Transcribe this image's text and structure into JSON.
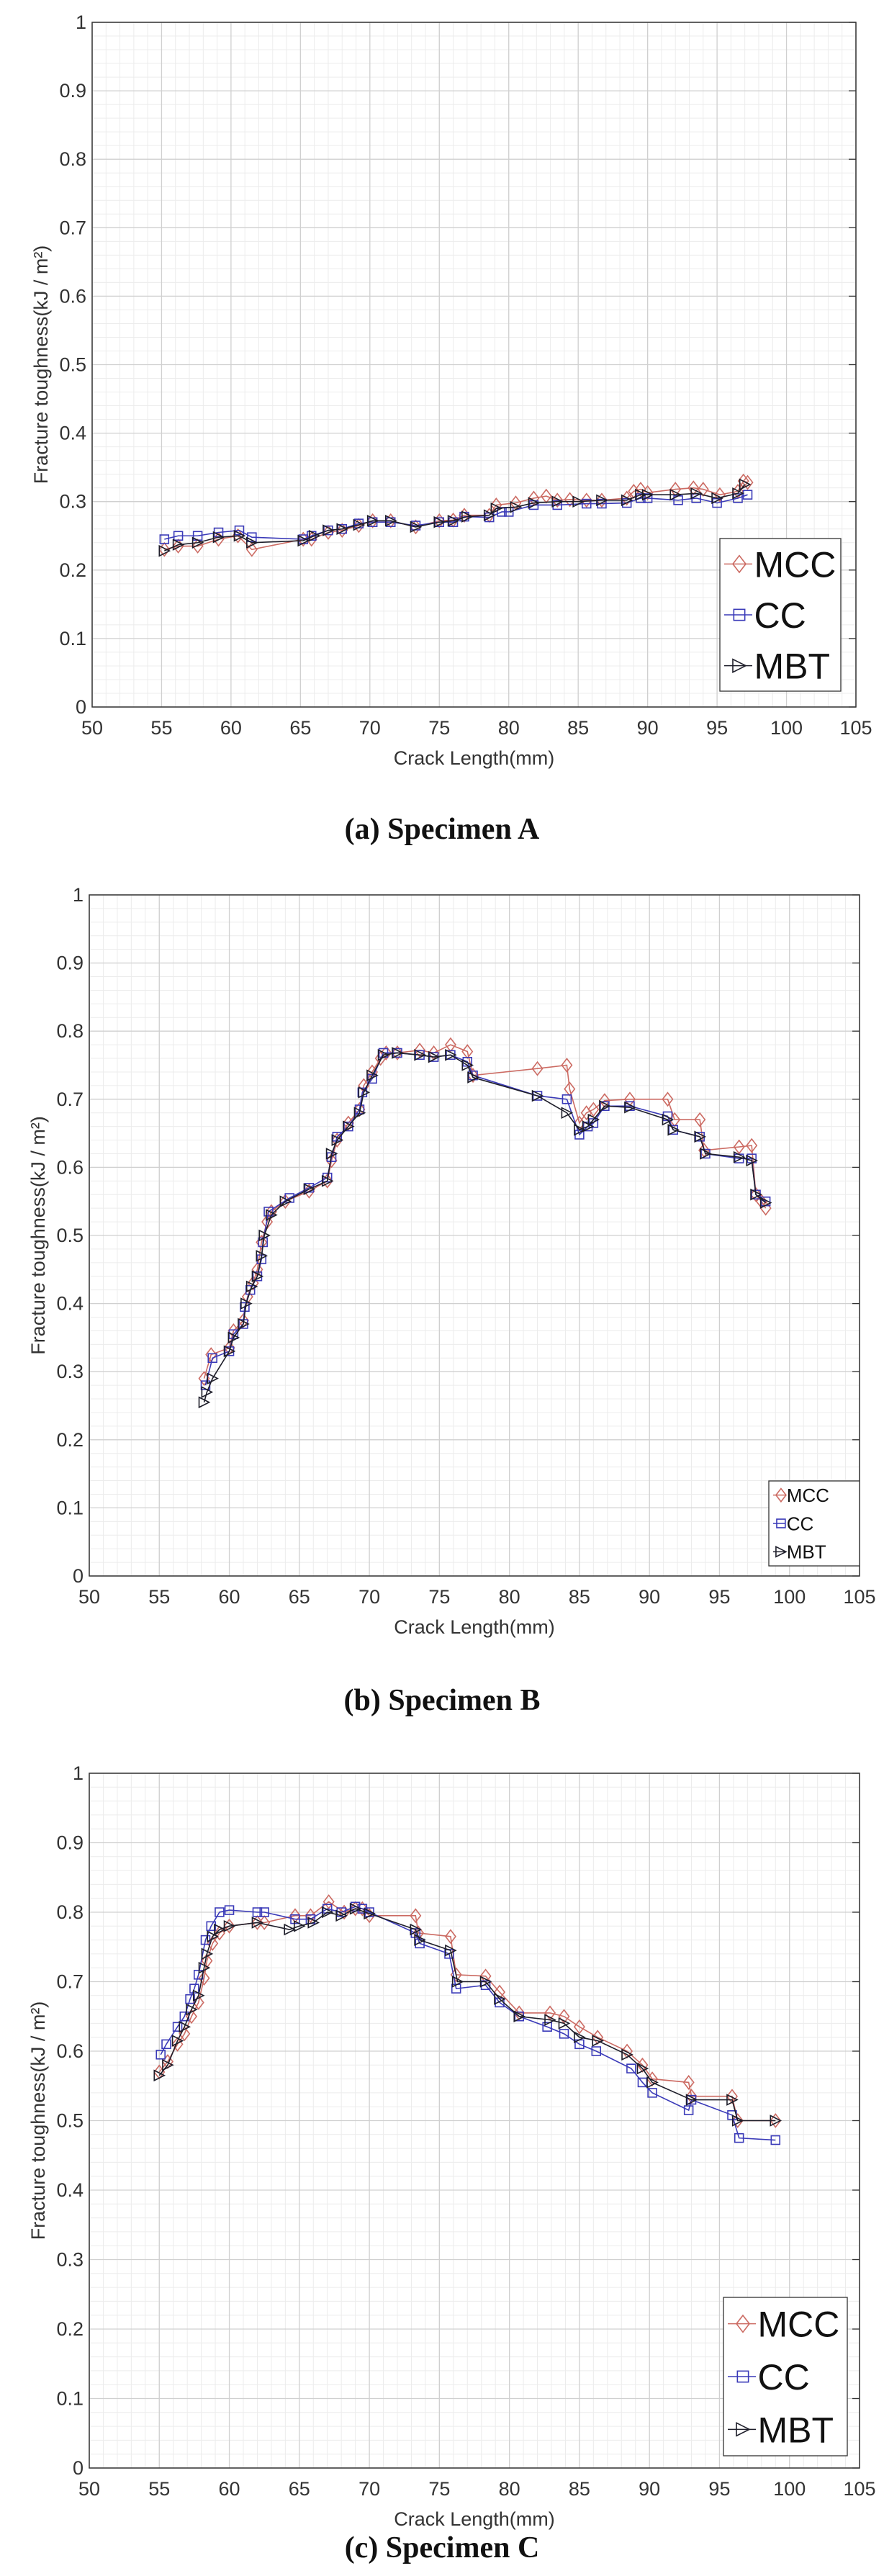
{
  "colors": {
    "MCC": "#cc6b63",
    "CC": "#3a3ab8",
    "MBT": "#1e1e2a"
  },
  "chart_data": [
    {
      "type": "line",
      "caption": "(a) Specimen A",
      "xlabel": "Crack Length(mm)",
      "ylabel": "Fracture toughness(kJ / m²)",
      "xlim": [
        50,
        105
      ],
      "ylim": [
        0,
        1
      ],
      "grid": true,
      "legend": "bottom-right",
      "legend_size": "large",
      "xticks": [
        "50",
        "55",
        "60",
        "65",
        "70",
        "75",
        "80",
        "85",
        "90",
        "95",
        "100",
        "105"
      ],
      "yticks": [
        "0",
        "0.1",
        "0.2",
        "0.3",
        "0.4",
        "0.5",
        "0.6",
        "0.7",
        "0.8",
        "0.9",
        "1"
      ],
      "series": [
        {
          "name": "MCC",
          "marker": "diamond",
          "x": [
            55.2,
            56.2,
            57.6,
            59.1,
            60.5,
            61.5,
            65.2,
            65.8,
            67,
            68,
            69.2,
            70.2,
            71.5,
            73.3,
            75,
            76,
            76.8,
            78.6,
            79.1,
            80.5,
            81.8,
            82.7,
            83.5,
            84.4,
            85.6,
            86.7,
            88.5,
            89,
            89.5,
            90,
            92,
            93.3,
            94,
            95.2,
            96.5,
            96.9,
            97.2
          ],
          "y": [
            0.23,
            0.235,
            0.235,
            0.245,
            0.25,
            0.23,
            0.245,
            0.245,
            0.255,
            0.258,
            0.265,
            0.272,
            0.272,
            0.263,
            0.272,
            0.273,
            0.28,
            0.28,
            0.295,
            0.298,
            0.305,
            0.308,
            0.302,
            0.303,
            0.302,
            0.302,
            0.305,
            0.315,
            0.318,
            0.313,
            0.318,
            0.32,
            0.318,
            0.31,
            0.315,
            0.33,
            0.328
          ]
        },
        {
          "name": "CC",
          "marker": "square",
          "x": [
            55.2,
            56.2,
            57.6,
            59.1,
            60.6,
            61.5,
            65.2,
            65.8,
            67,
            68,
            69.2,
            70.2,
            71.5,
            73.3,
            75,
            76,
            76.8,
            78.6,
            79.5,
            80,
            81.8,
            83.5,
            85.6,
            86.7,
            88.5,
            89.5,
            90,
            92.2,
            93.5,
            95,
            96.5,
            97.2
          ],
          "y": [
            0.245,
            0.25,
            0.25,
            0.255,
            0.258,
            0.248,
            0.245,
            0.25,
            0.258,
            0.26,
            0.268,
            0.27,
            0.27,
            0.265,
            0.27,
            0.27,
            0.278,
            0.277,
            0.285,
            0.285,
            0.295,
            0.295,
            0.297,
            0.297,
            0.298,
            0.305,
            0.305,
            0.302,
            0.305,
            0.298,
            0.305,
            0.31
          ]
        },
        {
          "name": "MBT",
          "marker": "triangle-right",
          "x": [
            55.2,
            56.2,
            57.6,
            59.1,
            60.6,
            61.5,
            65.2,
            66,
            67,
            68,
            69.2,
            70.2,
            71.5,
            73.3,
            75,
            76,
            77,
            78.6,
            79.1,
            80.5,
            81.8,
            83.5,
            85,
            86.7,
            88.5,
            89.5,
            90,
            92,
            93.5,
            95,
            96.5,
            97
          ],
          "y": [
            0.228,
            0.237,
            0.24,
            0.248,
            0.25,
            0.24,
            0.243,
            0.25,
            0.258,
            0.26,
            0.266,
            0.272,
            0.272,
            0.263,
            0.27,
            0.272,
            0.278,
            0.28,
            0.29,
            0.292,
            0.298,
            0.3,
            0.3,
            0.302,
            0.302,
            0.31,
            0.31,
            0.31,
            0.312,
            0.305,
            0.312,
            0.325
          ]
        }
      ]
    },
    {
      "type": "line",
      "caption": "(b) Specimen B",
      "xlabel": "Crack Length(mm)",
      "ylabel": "Fracture toughness(kJ / m²)",
      "xlim": [
        50,
        105
      ],
      "ylim": [
        0,
        1
      ],
      "grid": true,
      "legend": "bottom-right",
      "legend_size": "small",
      "xticks": [
        "50",
        "55",
        "60",
        "65",
        "70",
        "75",
        "80",
        "85",
        "90",
        "95",
        "100",
        "105"
      ],
      "yticks": [
        "0",
        "0.1",
        "0.2",
        "0.3",
        "0.4",
        "0.5",
        "0.6",
        "0.7",
        "0.8",
        "0.9",
        "1"
      ],
      "series": [
        {
          "name": "MCC",
          "marker": "diamond",
          "x": [
            58.2,
            58.7,
            60,
            60.3,
            61,
            61.3,
            61.7,
            62,
            62.3,
            62.7,
            63,
            64,
            65.7,
            67,
            67.3,
            67.7,
            68.5,
            69.3,
            69.6,
            70.2,
            70.8,
            71.2,
            72,
            73.6,
            74.6,
            75.8,
            77,
            77.4,
            82,
            84.1,
            84.3,
            85,
            85.5,
            86,
            86.8,
            88.6,
            91.3,
            91.8,
            93.6,
            93.9,
            96.4,
            97.3,
            97.6,
            98,
            98.3
          ],
          "y": [
            0.29,
            0.325,
            0.335,
            0.36,
            0.375,
            0.41,
            0.43,
            0.45,
            0.49,
            0.52,
            0.535,
            0.55,
            0.565,
            0.58,
            0.61,
            0.64,
            0.665,
            0.685,
            0.72,
            0.74,
            0.76,
            0.768,
            0.768,
            0.772,
            0.768,
            0.78,
            0.77,
            0.735,
            0.745,
            0.75,
            0.715,
            0.665,
            0.68,
            0.685,
            0.698,
            0.7,
            0.7,
            0.67,
            0.67,
            0.625,
            0.63,
            0.632,
            0.56,
            0.55,
            0.54
          ]
        },
        {
          "name": "CC",
          "marker": "square",
          "x": [
            58.3,
            58.8,
            60,
            60.3,
            61,
            61.1,
            61.5,
            62,
            62.3,
            62.4,
            62.8,
            64.3,
            65.7,
            67,
            67.3,
            67.7,
            68.5,
            69.3,
            69.5,
            70.2,
            71,
            72,
            73.6,
            74.6,
            75.8,
            77,
            77.4,
            82,
            84.1,
            85,
            85.6,
            86,
            86.8,
            88.6,
            91.3,
            91.7,
            93.6,
            94,
            96.4,
            97.3,
            97.6,
            98.3
          ],
          "y": [
            0.28,
            0.32,
            0.33,
            0.355,
            0.37,
            0.395,
            0.42,
            0.44,
            0.465,
            0.49,
            0.535,
            0.555,
            0.57,
            0.585,
            0.615,
            0.645,
            0.66,
            0.685,
            0.71,
            0.73,
            0.768,
            0.768,
            0.765,
            0.762,
            0.765,
            0.755,
            0.735,
            0.705,
            0.7,
            0.648,
            0.66,
            0.665,
            0.69,
            0.69,
            0.675,
            0.655,
            0.645,
            0.62,
            0.613,
            0.613,
            0.56,
            0.55
          ]
        },
        {
          "name": "MBT",
          "marker": "triangle-right",
          "x": [
            58.2,
            58.4,
            58.8,
            60,
            60.3,
            61,
            61.2,
            61.6,
            62,
            62.3,
            62.5,
            63,
            64,
            65.7,
            67,
            67.3,
            67.7,
            68.5,
            69.3,
            69.6,
            70.2,
            71,
            72,
            73.6,
            74.6,
            75.8,
            77,
            77.4,
            82,
            84.1,
            85,
            85.6,
            86,
            86.8,
            88.6,
            91.3,
            91.7,
            93.6,
            94,
            96.4,
            97.3,
            97.6,
            98.3
          ],
          "y": [
            0.255,
            0.27,
            0.29,
            0.33,
            0.35,
            0.37,
            0.4,
            0.425,
            0.44,
            0.47,
            0.5,
            0.53,
            0.55,
            0.568,
            0.58,
            0.62,
            0.64,
            0.66,
            0.68,
            0.71,
            0.735,
            0.765,
            0.768,
            0.765,
            0.762,
            0.765,
            0.75,
            0.732,
            0.705,
            0.68,
            0.655,
            0.66,
            0.67,
            0.69,
            0.688,
            0.67,
            0.655,
            0.645,
            0.62,
            0.615,
            0.61,
            0.56,
            0.548
          ]
        }
      ]
    },
    {
      "type": "line",
      "caption": "(c) Specimen C",
      "xlabel": "Crack Length(mm)",
      "ylabel": "Fracture toughness(kJ / m²)",
      "xlim": [
        50,
        105
      ],
      "ylim": [
        0,
        1
      ],
      "grid": true,
      "legend": "bottom-right",
      "legend_size": "large",
      "xticks": [
        "50",
        "55",
        "60",
        "65",
        "70",
        "75",
        "80",
        "85",
        "90",
        "95",
        "100",
        "105"
      ],
      "yticks": [
        "0",
        "0.1",
        "0.2",
        "0.3",
        "0.4",
        "0.5",
        "0.6",
        "0.7",
        "0.8",
        "0.9",
        "1"
      ],
      "series": [
        {
          "name": "MCC",
          "marker": "diamond",
          "x": [
            55,
            55.6,
            56.3,
            56.8,
            57.3,
            57.8,
            58.2,
            58.4,
            58.8,
            59.3,
            60,
            62,
            62.5,
            64.7,
            65.8,
            67.1,
            68.2,
            69,
            69.5,
            70,
            73.3,
            73.5,
            75.8,
            76.2,
            78.3,
            79.3,
            80.7,
            82.9,
            83.9,
            85,
            86.3,
            88.4,
            89.5,
            90.2,
            92.8,
            93,
            95.9,
            96.3,
            99
          ],
          "y": [
            0.57,
            0.585,
            0.61,
            0.625,
            0.65,
            0.67,
            0.705,
            0.73,
            0.755,
            0.77,
            0.78,
            0.785,
            0.785,
            0.795,
            0.795,
            0.815,
            0.8,
            0.805,
            0.805,
            0.795,
            0.795,
            0.77,
            0.765,
            0.71,
            0.708,
            0.685,
            0.655,
            0.655,
            0.65,
            0.635,
            0.62,
            0.6,
            0.58,
            0.56,
            0.555,
            0.535,
            0.535,
            0.5,
            0.5
          ]
        },
        {
          "name": "CC",
          "marker": "square",
          "x": [
            55.1,
            55.5,
            56.3,
            56.8,
            57.2,
            57.5,
            57.8,
            58.3,
            58.7,
            59.3,
            60,
            62,
            62.5,
            64.7,
            65.8,
            67,
            68,
            69,
            69.5,
            70,
            73.3,
            73.6,
            75.7,
            76.2,
            78.3,
            79.3,
            80.7,
            82.7,
            83.9,
            85,
            86.2,
            88.7,
            89.5,
            90.2,
            92.8,
            93,
            95.9,
            96.4,
            99
          ],
          "y": [
            0.595,
            0.61,
            0.635,
            0.65,
            0.675,
            0.69,
            0.71,
            0.76,
            0.78,
            0.8,
            0.803,
            0.8,
            0.8,
            0.79,
            0.79,
            0.805,
            0.8,
            0.808,
            0.805,
            0.8,
            0.77,
            0.755,
            0.74,
            0.69,
            0.695,
            0.67,
            0.65,
            0.635,
            0.625,
            0.61,
            0.6,
            0.575,
            0.555,
            0.54,
            0.515,
            0.53,
            0.508,
            0.475,
            0.472
          ]
        },
        {
          "name": "MBT",
          "marker": "triangle-right",
          "x": [
            55,
            55.6,
            56.3,
            56.8,
            57.3,
            57.8,
            58.2,
            58.4,
            58.8,
            59.3,
            60,
            62,
            64.3,
            65,
            66,
            67,
            68,
            69,
            70,
            73.3,
            73.6,
            75.8,
            76.3,
            78.3,
            79.3,
            80.7,
            82.9,
            83.9,
            85,
            86.3,
            88.4,
            89.5,
            90.2,
            93,
            95.9,
            96.3,
            99
          ],
          "y": [
            0.565,
            0.58,
            0.615,
            0.635,
            0.66,
            0.68,
            0.72,
            0.74,
            0.765,
            0.775,
            0.78,
            0.785,
            0.775,
            0.78,
            0.785,
            0.8,
            0.795,
            0.805,
            0.798,
            0.775,
            0.76,
            0.745,
            0.7,
            0.7,
            0.675,
            0.65,
            0.645,
            0.64,
            0.62,
            0.615,
            0.595,
            0.575,
            0.555,
            0.53,
            0.53,
            0.5,
            0.5
          ]
        }
      ]
    }
  ]
}
